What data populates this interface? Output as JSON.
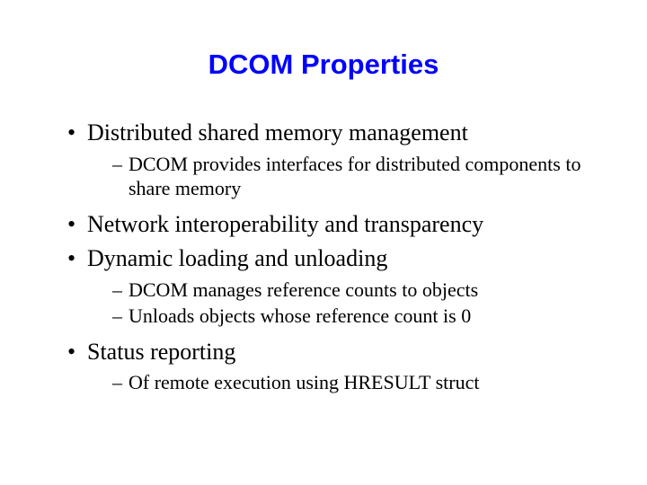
{
  "slide": {
    "title": "DCOM Properties",
    "title_color": "#0000ff",
    "title_font": "Arial",
    "title_fontsize": 31,
    "title_weight": "bold",
    "body_font": "Times New Roman",
    "body_color": "#000000",
    "background_color": "#ffffff",
    "bullets": [
      {
        "text": "Distributed shared memory management",
        "sub": [
          "DCOM provides interfaces for distributed components to share memory"
        ]
      },
      {
        "text": "Network interoperability and transparency",
        "sub": []
      },
      {
        "text": "Dynamic loading and unloading",
        "sub": [
          "DCOM manages reference counts to objects",
          "Unloads objects whose reference count is 0"
        ]
      },
      {
        "text": "Status reporting",
        "sub": [
          "Of remote execution using HRESULT struct"
        ]
      }
    ],
    "level1_fontsize": 26,
    "level2_fontsize": 22
  }
}
